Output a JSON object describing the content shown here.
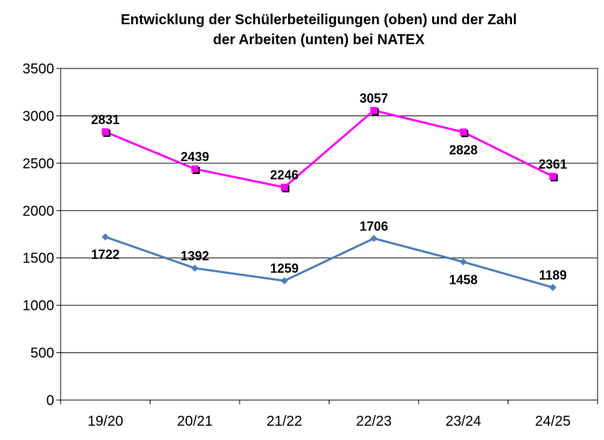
{
  "chart_data": {
    "type": "line",
    "title_line1": "Entwicklung der Schülerbeteiligungen (oben) und der Zahl",
    "title_line2": "der Arbeiten (unten) bei NATEX",
    "xlabel": "",
    "ylabel": "",
    "categories": [
      "19/20",
      "20/21",
      "21/22",
      "22/23",
      "23/24",
      "24/25"
    ],
    "ylim": [
      0,
      3500
    ],
    "yticks": [
      0,
      500,
      1000,
      1500,
      2000,
      2500,
      3000,
      3500
    ],
    "grid": true,
    "legend": "none",
    "series": [
      {
        "values": [
          2831,
          2439,
          2246,
          3057,
          2828,
          2361
        ],
        "labels": [
          "2831",
          "2439",
          "2246",
          "3057",
          "2828",
          "2361"
        ],
        "label_position": [
          "above",
          "above",
          "above",
          "above",
          "below",
          "above"
        ],
        "color": "#ff00ff",
        "marker": "square"
      },
      {
        "values": [
          1722,
          1392,
          1259,
          1706,
          1458,
          1189
        ],
        "labels": [
          "1722",
          "1392",
          "1259",
          "1706",
          "1458",
          "1189"
        ],
        "label_position": [
          "below",
          "above",
          "above",
          "above",
          "below",
          "above"
        ],
        "color": "#4a7ebb",
        "marker": "diamond"
      }
    ]
  }
}
